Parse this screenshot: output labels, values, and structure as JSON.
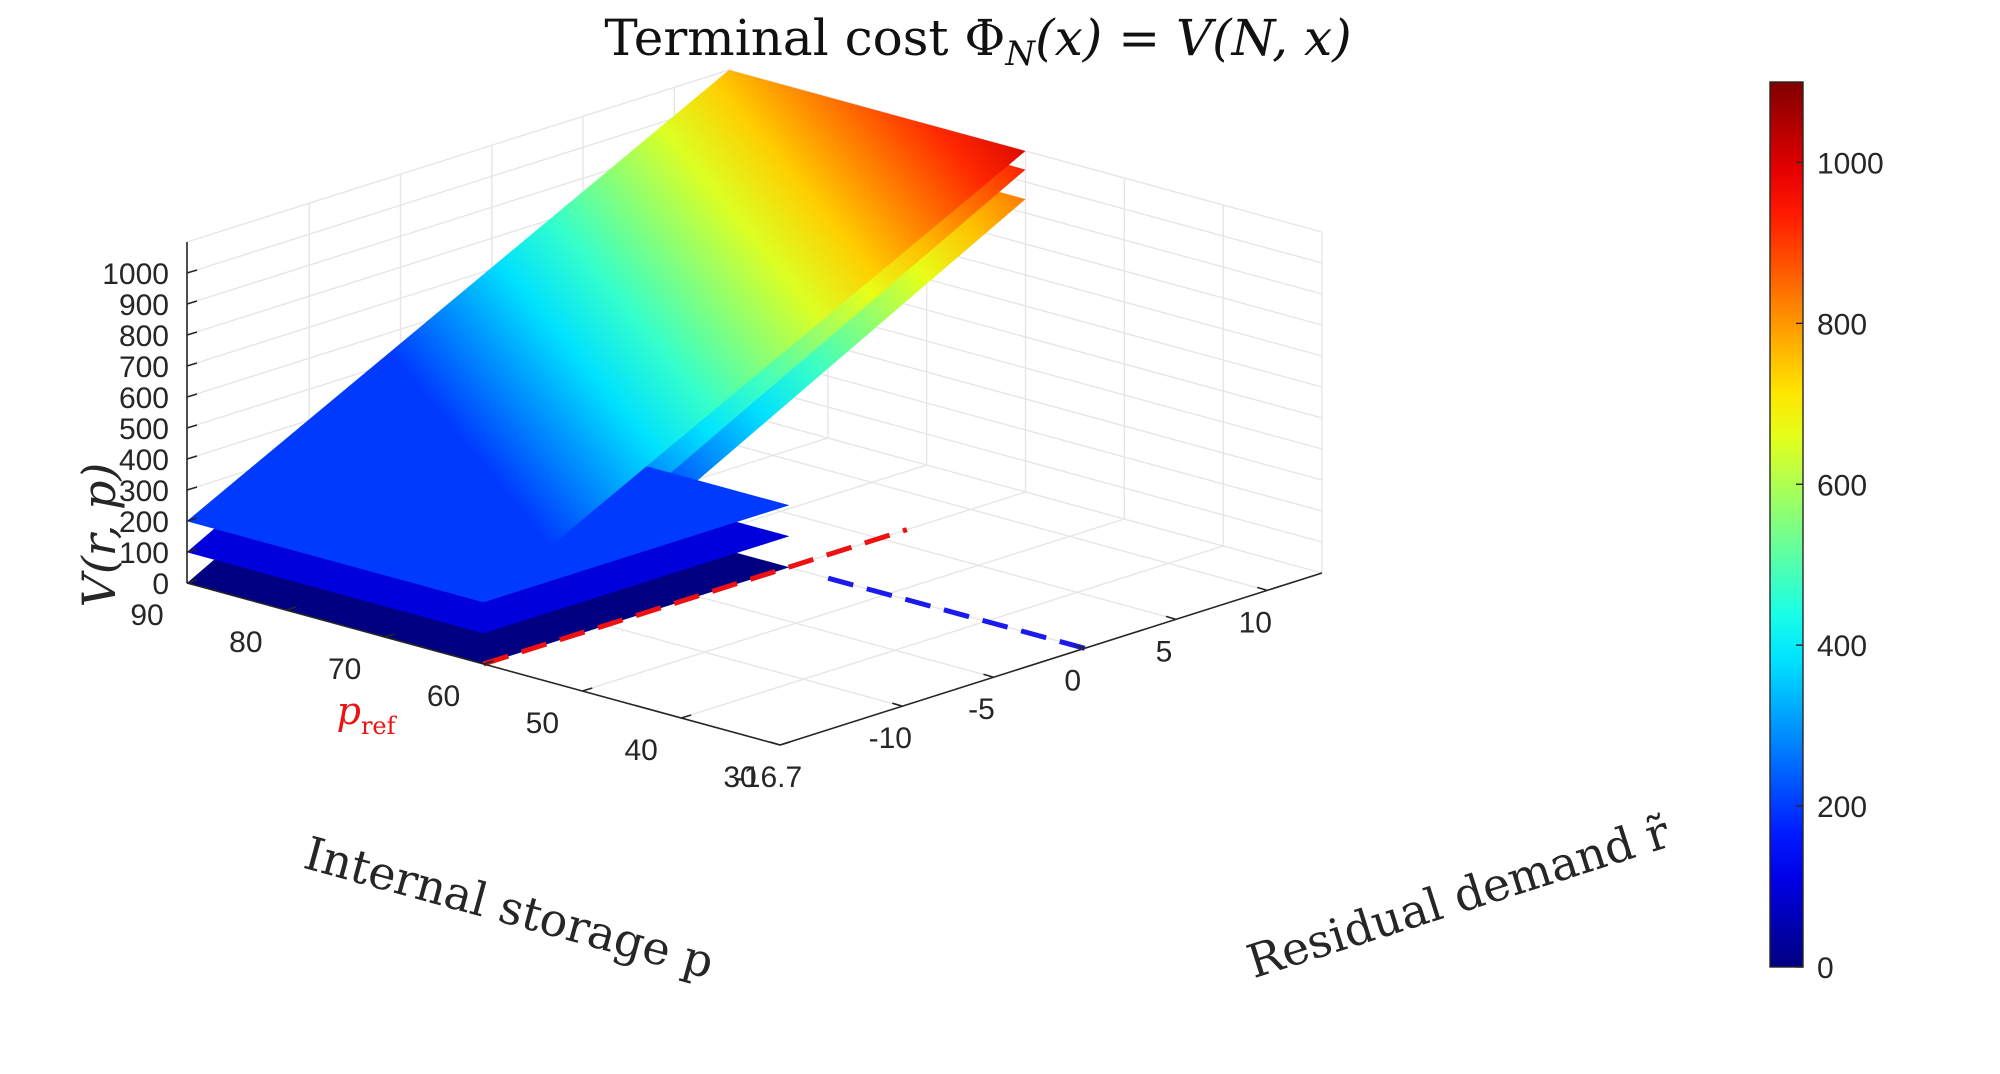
{
  "chart_data": {
    "type": "surface3d",
    "title": "Terminal cost Φ_N(x) = V(N, x)",
    "title_parts": {
      "lead": "Terminal cost ",
      "symbol": "Φ",
      "subscript": "N",
      "rest": "(x) = V(N, x)"
    },
    "zlabel": "V(r, p)",
    "xlabel": "Internal storage p",
    "ylabel": "Residual demand r̃",
    "p_axis": {
      "range": [
        30,
        90
      ],
      "ticks": [
        90,
        80,
        70,
        60,
        50,
        40,
        30
      ],
      "tick_labels": [
        "90",
        "80",
        "70",
        "60",
        "50",
        "40",
        "30"
      ]
    },
    "r_axis": {
      "range": [
        -16.7,
        13
      ],
      "ticks": [
        -16.7,
        -10,
        -5,
        0,
        5,
        10
      ],
      "tick_labels": [
        "-16.7",
        "-10",
        "-5",
        "0",
        "5",
        "10"
      ]
    },
    "z_axis": {
      "range": [
        0,
        1100
      ],
      "ticks": [
        0,
        100,
        200,
        300,
        400,
        500,
        600,
        700,
        800,
        900,
        1000
      ],
      "tick_labels": [
        "0",
        "100",
        "200",
        "300",
        "400",
        "500",
        "600",
        "700",
        "800",
        "900",
        "1000"
      ]
    },
    "p_ref": {
      "value": 60,
      "label": "p",
      "subscript": "ref",
      "color": "#ee1111"
    },
    "r_zero_line": {
      "value": 0,
      "color": "#1a1aee"
    },
    "colorbar": {
      "colormap": "jet",
      "range": [
        0,
        1100
      ],
      "ticks": [
        0,
        200,
        400,
        600,
        800,
        1000
      ],
      "tick_labels": [
        "0",
        "200",
        "400",
        "600",
        "800",
        "1000"
      ]
    },
    "grid": true,
    "surfaces": [
      {
        "p_ref": 60,
        "plateau": 0,
        "value_at_corner": 945
      },
      {
        "p_ref": 60,
        "plateau": 100,
        "value_at_corner": 1040
      },
      {
        "p_ref": 60,
        "plateau": 200,
        "value_at_corner": 1100
      }
    ],
    "view": {
      "azimuth_deg": -55,
      "elevation_deg": 18
    }
  }
}
